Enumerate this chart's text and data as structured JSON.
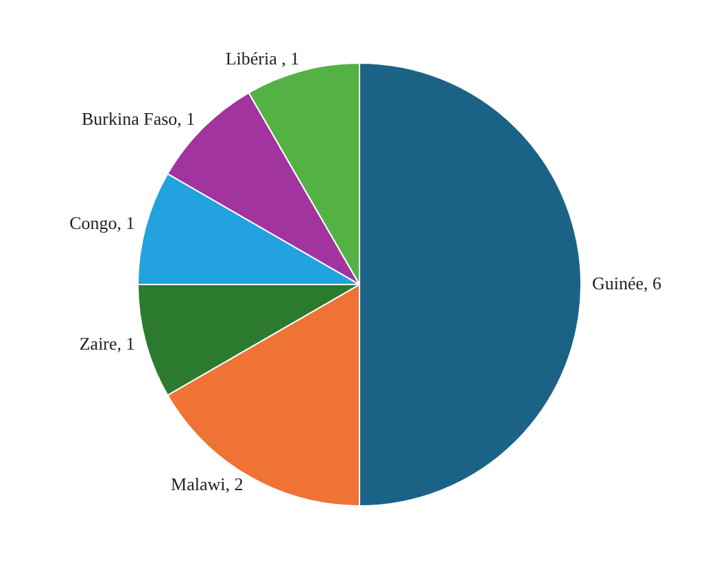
{
  "chart_data": {
    "type": "pie",
    "categories": [
      "Guinée",
      "Malawi",
      "Zaire",
      "Congo",
      "Burkina Faso",
      "Libéria "
    ],
    "values": [
      6,
      2,
      1,
      1,
      1,
      1
    ],
    "colors": [
      "#1b6386",
      "#ee7334",
      "#2b7a2e",
      "#22a3df",
      "#a2349f",
      "#54b244"
    ],
    "value_labels": [
      ", 6",
      ", 2",
      ", 1",
      ", 1",
      ", 1",
      ", 1"
    ],
    "legend": false
  }
}
